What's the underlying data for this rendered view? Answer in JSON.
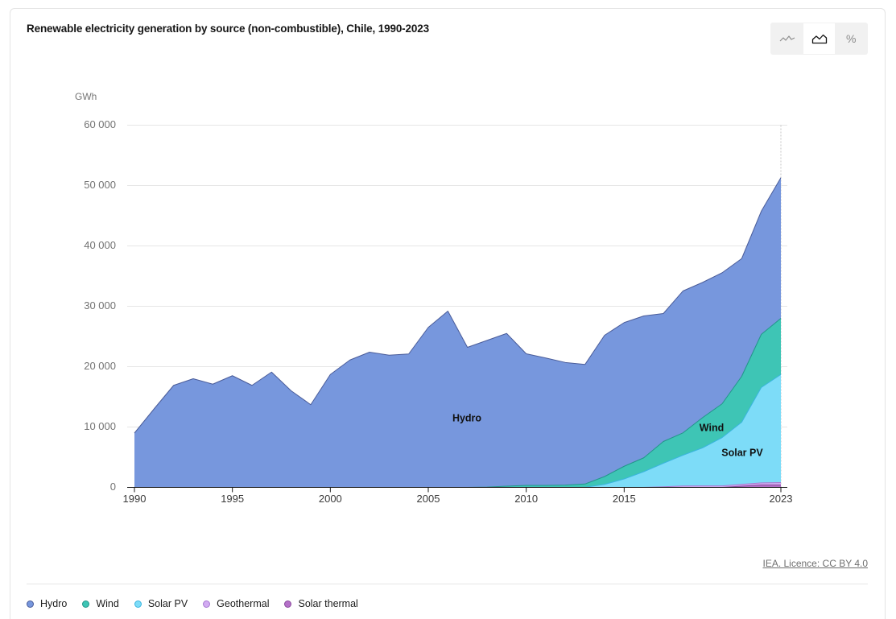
{
  "view_toggle": {
    "options": [
      {
        "icon": "line-chart-icon",
        "selected": false
      },
      {
        "icon": "area-chart-icon",
        "selected": true
      },
      {
        "icon": "percent-icon",
        "label": "%",
        "selected": false
      }
    ]
  },
  "footer": {
    "source_link": "IEA. Licence: CC BY 4.0"
  },
  "chart_data": {
    "type": "area",
    "stacked": true,
    "title": "Renewable electricity generation by source (non-combustible), Chile, 1990-2023",
    "ylabel": "GWh",
    "xlim": [
      1990,
      2023
    ],
    "ylim": [
      0,
      60000
    ],
    "yticks": [
      0,
      10000,
      20000,
      30000,
      40000,
      50000,
      60000
    ],
    "ytick_labels": [
      "0",
      "10 000",
      "20 000",
      "30 000",
      "40 000",
      "50 000",
      "60 000"
    ],
    "xticks": [
      1990,
      1995,
      2000,
      2005,
      2010,
      2015,
      2023
    ],
    "xtick_labels": [
      "1990",
      "1995",
      "2000",
      "2005",
      "2010",
      "2015",
      "2023"
    ],
    "grid": true,
    "legend_position": "bottom-left",
    "x": [
      1990,
      1991,
      1992,
      1993,
      1994,
      1995,
      1996,
      1997,
      1998,
      1999,
      2000,
      2001,
      2002,
      2003,
      2004,
      2005,
      2006,
      2007,
      2008,
      2009,
      2010,
      2011,
      2012,
      2013,
      2014,
      2015,
      2016,
      2017,
      2018,
      2019,
      2020,
      2021,
      2022,
      2023
    ],
    "series": [
      {
        "name": "Hydro",
        "color": "#7797dd",
        "edge_color": "#4a5c99",
        "values": [
          9000,
          13000,
          16900,
          18000,
          17100,
          18500,
          16900,
          19100,
          16000,
          13700,
          18700,
          21100,
          22400,
          21900,
          22100,
          26500,
          29200,
          23200,
          24300,
          25300,
          21800,
          21100,
          20300,
          19800,
          23400,
          23800,
          23500,
          21200,
          23500,
          22400,
          21700,
          19500,
          20400,
          23300
        ]
      },
      {
        "name": "Wind",
        "color": "#3ec5b5",
        "edge_color": "#23958a",
        "values": [
          0,
          0,
          0,
          0,
          0,
          0,
          0,
          0,
          0,
          0,
          0,
          0,
          0,
          0,
          0,
          0,
          0,
          0,
          50,
          200,
          330,
          330,
          390,
          550,
          1300,
          2100,
          2300,
          3600,
          3700,
          5000,
          5600,
          7600,
          8800,
          9300
        ]
      },
      {
        "name": "Solar PV",
        "color": "#7ddcf8",
        "edge_color": "#3ab5df",
        "values": [
          0,
          0,
          0,
          0,
          0,
          0,
          0,
          0,
          0,
          0,
          0,
          0,
          0,
          0,
          0,
          0,
          0,
          0,
          0,
          0,
          0,
          0,
          0,
          10,
          500,
          1400,
          2600,
          3900,
          5100,
          6300,
          8000,
          10300,
          15800,
          17900
        ]
      },
      {
        "name": "Geothermal",
        "color": "#d2abf2",
        "edge_color": "#a77ad0",
        "values": [
          0,
          0,
          0,
          0,
          0,
          0,
          0,
          0,
          0,
          0,
          0,
          0,
          0,
          0,
          0,
          0,
          0,
          0,
          0,
          0,
          0,
          0,
          0,
          0,
          0,
          0,
          0,
          100,
          230,
          250,
          250,
          300,
          350,
          400
        ]
      },
      {
        "name": "Solar thermal",
        "color": "#b470c8",
        "edge_color": "#8a4a9d",
        "values": [
          0,
          0,
          0,
          0,
          0,
          0,
          0,
          0,
          0,
          0,
          0,
          0,
          0,
          0,
          0,
          0,
          0,
          0,
          0,
          0,
          0,
          0,
          0,
          0,
          0,
          0,
          0,
          0,
          0,
          0,
          0,
          200,
          400,
          400
        ]
      }
    ]
  }
}
